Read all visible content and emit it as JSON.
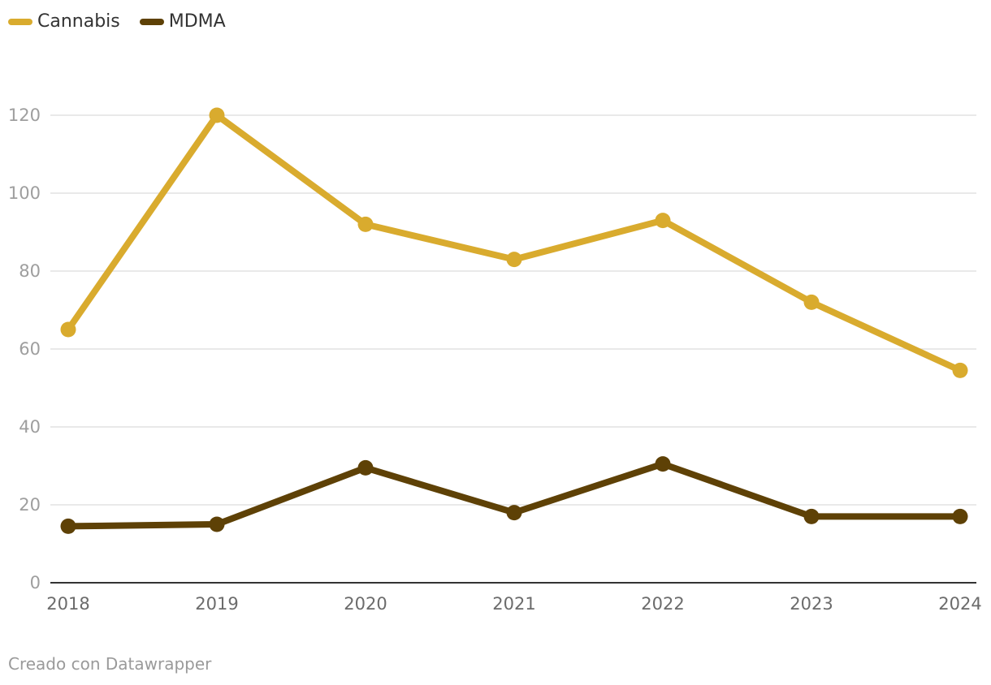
{
  "chart_data": {
    "type": "line",
    "title": "",
    "xlabel": "",
    "ylabel": "",
    "x": [
      "2018",
      "2019",
      "2020",
      "2021",
      "2022",
      "2023",
      "2024"
    ],
    "ylim": [
      0,
      120
    ],
    "yticks": [
      0,
      20,
      40,
      60,
      80,
      100,
      120
    ],
    "grid": true,
    "legend_position": "top-left",
    "series": [
      {
        "name": "Cannabis",
        "color": "#d9ab2e",
        "values": [
          65,
          120,
          92,
          83,
          93,
          72,
          54.5
        ]
      },
      {
        "name": "MDMA",
        "color": "#5e4106",
        "values": [
          14.5,
          15,
          29.5,
          18,
          30.5,
          17,
          17
        ]
      }
    ]
  },
  "legend": {
    "items": [
      {
        "label": "Cannabis",
        "color": "#d9ab2e"
      },
      {
        "label": "MDMA",
        "color": "#5e4106"
      }
    ]
  },
  "footer": {
    "credit": "Creado con Datawrapper"
  }
}
